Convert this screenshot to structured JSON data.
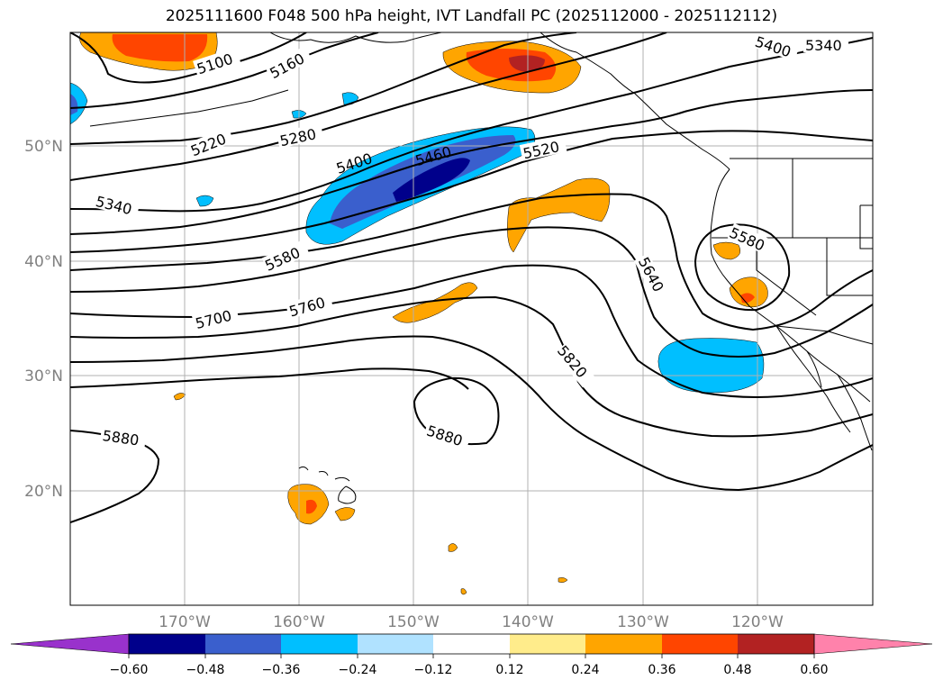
{
  "title": "2025111600 F048 500 hPa height, IVT Landfall PC (2025112000 - 2025112112)",
  "latitude_labels": [
    "50°N",
    "40°N",
    "30°N",
    "20°N"
  ],
  "longitude_labels": [
    "170°W",
    "160°W",
    "150°W",
    "140°W",
    "130°W",
    "120°W"
  ],
  "contour_labels": [
    "5100",
    "5160",
    "5400",
    "5340",
    "5220",
    "5280",
    "5400",
    "5460",
    "5520",
    "5340",
    "5580",
    "5580",
    "5640",
    "5700",
    "5760",
    "5820",
    "5880",
    "5880"
  ],
  "colorbar": {
    "tick_labels": [
      "−0.60",
      "−0.48",
      "−0.36",
      "−0.24",
      "−0.12",
      "0.12",
      "0.24",
      "0.36",
      "0.48",
      "0.60"
    ],
    "colors": [
      "#9932cc",
      "#00008b",
      "#3a5fcd",
      "#00bfff",
      "#b0e2ff",
      "#ffffff",
      "#ffec8b",
      "#ffa500",
      "#ff4500",
      "#b22222",
      "#ff82ab"
    ]
  },
  "colors": {
    "land_outline": "#000000",
    "contour": "#000000",
    "grid": "#b0b0b0",
    "neg_light": "#00bfff",
    "neg_mid": "#3a5fcd",
    "neg_dark": "#00008b",
    "pos_light": "#ffa500",
    "pos_mid": "#ff4500",
    "pos_dark": "#b22222"
  }
}
